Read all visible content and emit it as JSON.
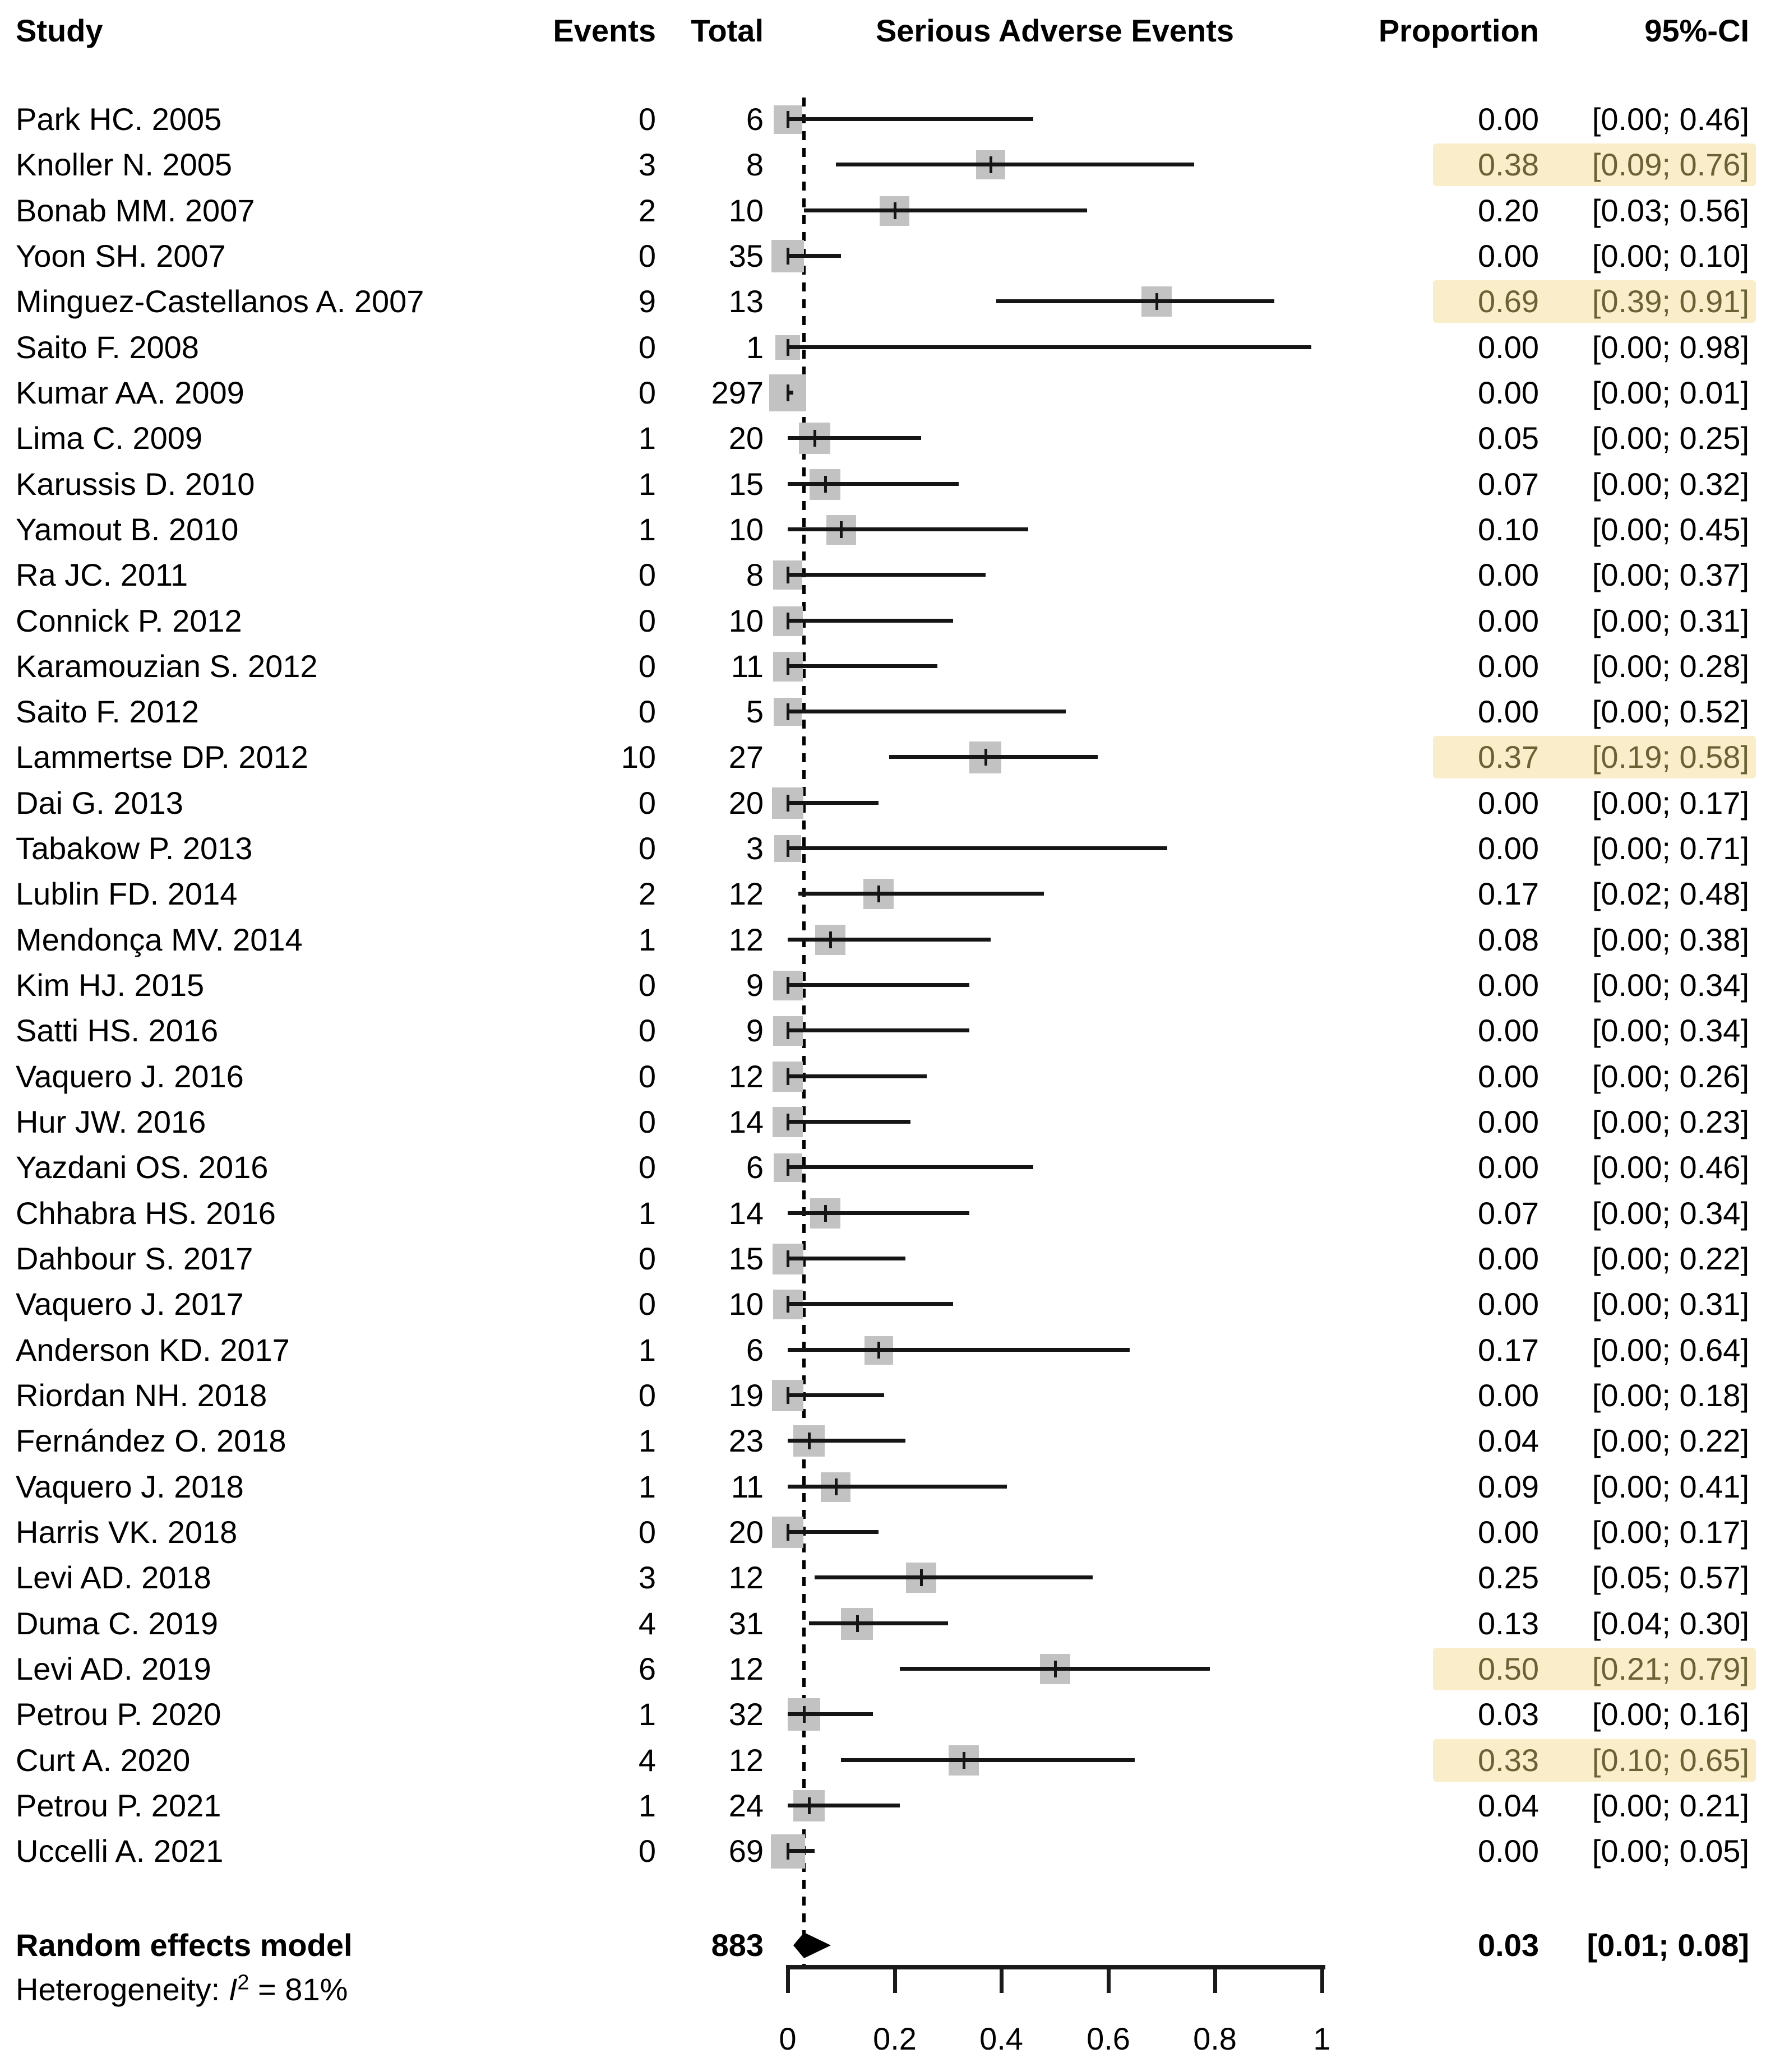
{
  "chart_data": {
    "type": "forest",
    "title": "Serious Adverse Events",
    "columns": {
      "study": "Study",
      "events": "Events",
      "total": "Total",
      "plot": "Serious Adverse Events",
      "proportion": "Proportion",
      "ci": "95%-CI"
    },
    "axis": {
      "min": 0,
      "max": 1,
      "tick_values": [
        0,
        0.2,
        0.4,
        0.6,
        0.8,
        1
      ],
      "ticks": [
        "0",
        "0.2",
        "0.4",
        "0.6",
        "0.8",
        "1"
      ]
    },
    "pooled": {
      "label": "Random effects model",
      "total": "883",
      "proportion": 0.03,
      "ci_lower": 0.01,
      "ci_upper": 0.08,
      "proportion_text": "0.03",
      "ci_text": "[0.01; 0.08]"
    },
    "heterogeneity": {
      "prefix": "Heterogeneity: ",
      "stat": "I",
      "sup": "2",
      "rest": " = 81%"
    },
    "colors": {
      "square": "#c2c2c2",
      "highlight_bg": "#f9edca",
      "highlight_text": "#6a6135"
    },
    "studies": [
      {
        "name": "Park HC. 2005",
        "events": "0",
        "total": "6",
        "n": 6,
        "p": 0.0,
        "lo": 0.0,
        "hi": 0.46,
        "p_text": "0.00",
        "ci_text": "[0.00; 0.46]",
        "highlight": false
      },
      {
        "name": "Knoller N. 2005",
        "events": "3",
        "total": "8",
        "n": 8,
        "p": 0.38,
        "lo": 0.09,
        "hi": 0.76,
        "p_text": "0.38",
        "ci_text": "[0.09; 0.76]",
        "highlight": true
      },
      {
        "name": "Bonab MM. 2007",
        "events": "2",
        "total": "10",
        "n": 10,
        "p": 0.2,
        "lo": 0.03,
        "hi": 0.56,
        "p_text": "0.20",
        "ci_text": "[0.03; 0.56]",
        "highlight": false
      },
      {
        "name": "Yoon SH. 2007",
        "events": "0",
        "total": "35",
        "n": 35,
        "p": 0.0,
        "lo": 0.0,
        "hi": 0.1,
        "p_text": "0.00",
        "ci_text": "[0.00; 0.10]",
        "highlight": false
      },
      {
        "name": "Minguez-Castellanos A. 2007",
        "events": "9",
        "total": "13",
        "n": 13,
        "p": 0.69,
        "lo": 0.39,
        "hi": 0.91,
        "p_text": "0.69",
        "ci_text": "[0.39; 0.91]",
        "highlight": true
      },
      {
        "name": "Saito F. 2008",
        "events": "0",
        "total": "1",
        "n": 1,
        "p": 0.0,
        "lo": 0.0,
        "hi": 0.98,
        "p_text": "0.00",
        "ci_text": "[0.00; 0.98]",
        "highlight": false
      },
      {
        "name": "Kumar AA. 2009",
        "events": "0",
        "total": "297",
        "n": 297,
        "p": 0.0,
        "lo": 0.0,
        "hi": 0.01,
        "p_text": "0.00",
        "ci_text": "[0.00; 0.01]",
        "highlight": false
      },
      {
        "name": "Lima C. 2009",
        "events": "1",
        "total": "20",
        "n": 20,
        "p": 0.05,
        "lo": 0.0,
        "hi": 0.25,
        "p_text": "0.05",
        "ci_text": "[0.00; 0.25]",
        "highlight": false
      },
      {
        "name": "Karussis D. 2010",
        "events": "1",
        "total": "15",
        "n": 15,
        "p": 0.07,
        "lo": 0.0,
        "hi": 0.32,
        "p_text": "0.07",
        "ci_text": "[0.00; 0.32]",
        "highlight": false
      },
      {
        "name": "Yamout B. 2010",
        "events": "1",
        "total": "10",
        "n": 10,
        "p": 0.1,
        "lo": 0.0,
        "hi": 0.45,
        "p_text": "0.10",
        "ci_text": "[0.00; 0.45]",
        "highlight": false
      },
      {
        "name": "Ra JC. 2011",
        "events": "0",
        "total": "8",
        "n": 8,
        "p": 0.0,
        "lo": 0.0,
        "hi": 0.37,
        "p_text": "0.00",
        "ci_text": "[0.00; 0.37]",
        "highlight": false
      },
      {
        "name": "Connick P. 2012",
        "events": "0",
        "total": "10",
        "n": 10,
        "p": 0.0,
        "lo": 0.0,
        "hi": 0.31,
        "p_text": "0.00",
        "ci_text": "[0.00; 0.31]",
        "highlight": false
      },
      {
        "name": "Karamouzian S. 2012",
        "events": "0",
        "total": "11",
        "n": 11,
        "p": 0.0,
        "lo": 0.0,
        "hi": 0.28,
        "p_text": "0.00",
        "ci_text": "[0.00; 0.28]",
        "highlight": false
      },
      {
        "name": "Saito F. 2012",
        "events": "0",
        "total": "5",
        "n": 5,
        "p": 0.0,
        "lo": 0.0,
        "hi": 0.52,
        "p_text": "0.00",
        "ci_text": "[0.00; 0.52]",
        "highlight": false
      },
      {
        "name": "Lammertse DP. 2012",
        "events": "10",
        "total": "27",
        "n": 27,
        "p": 0.37,
        "lo": 0.19,
        "hi": 0.58,
        "p_text": "0.37",
        "ci_text": "[0.19; 0.58]",
        "highlight": true
      },
      {
        "name": "Dai G. 2013",
        "events": "0",
        "total": "20",
        "n": 20,
        "p": 0.0,
        "lo": 0.0,
        "hi": 0.17,
        "p_text": "0.00",
        "ci_text": "[0.00; 0.17]",
        "highlight": false
      },
      {
        "name": "Tabakow P. 2013",
        "events": "0",
        "total": "3",
        "n": 3,
        "p": 0.0,
        "lo": 0.0,
        "hi": 0.71,
        "p_text": "0.00",
        "ci_text": "[0.00; 0.71]",
        "highlight": false
      },
      {
        "name": "Lublin FD. 2014",
        "events": "2",
        "total": "12",
        "n": 12,
        "p": 0.17,
        "lo": 0.02,
        "hi": 0.48,
        "p_text": "0.17",
        "ci_text": "[0.02; 0.48]",
        "highlight": false
      },
      {
        "name": "Mendonça MV. 2014",
        "events": "1",
        "total": "12",
        "n": 12,
        "p": 0.08,
        "lo": 0.0,
        "hi": 0.38,
        "p_text": "0.08",
        "ci_text": "[0.00; 0.38]",
        "highlight": false
      },
      {
        "name": "Kim HJ. 2015",
        "events": "0",
        "total": "9",
        "n": 9,
        "p": 0.0,
        "lo": 0.0,
        "hi": 0.34,
        "p_text": "0.00",
        "ci_text": "[0.00; 0.34]",
        "highlight": false
      },
      {
        "name": "Satti HS. 2016",
        "events": "0",
        "total": "9",
        "n": 9,
        "p": 0.0,
        "lo": 0.0,
        "hi": 0.34,
        "p_text": "0.00",
        "ci_text": "[0.00; 0.34]",
        "highlight": false
      },
      {
        "name": "Vaquero J. 2016",
        "events": "0",
        "total": "12",
        "n": 12,
        "p": 0.0,
        "lo": 0.0,
        "hi": 0.26,
        "p_text": "0.00",
        "ci_text": "[0.00; 0.26]",
        "highlight": false
      },
      {
        "name": "Hur JW. 2016",
        "events": "0",
        "total": "14",
        "n": 14,
        "p": 0.0,
        "lo": 0.0,
        "hi": 0.23,
        "p_text": "0.00",
        "ci_text": "[0.00; 0.23]",
        "highlight": false
      },
      {
        "name": "Yazdani OS. 2016",
        "events": "0",
        "total": "6",
        "n": 6,
        "p": 0.0,
        "lo": 0.0,
        "hi": 0.46,
        "p_text": "0.00",
        "ci_text": "[0.00; 0.46]",
        "highlight": false
      },
      {
        "name": "Chhabra HS. 2016",
        "events": "1",
        "total": "14",
        "n": 14,
        "p": 0.07,
        "lo": 0.0,
        "hi": 0.34,
        "p_text": "0.07",
        "ci_text": "[0.00; 0.34]",
        "highlight": false
      },
      {
        "name": "Dahbour S. 2017",
        "events": "0",
        "total": "15",
        "n": 15,
        "p": 0.0,
        "lo": 0.0,
        "hi": 0.22,
        "p_text": "0.00",
        "ci_text": "[0.00; 0.22]",
        "highlight": false
      },
      {
        "name": "Vaquero J. 2017",
        "events": "0",
        "total": "10",
        "n": 10,
        "p": 0.0,
        "lo": 0.0,
        "hi": 0.31,
        "p_text": "0.00",
        "ci_text": "[0.00; 0.31]",
        "highlight": false
      },
      {
        "name": "Anderson KD. 2017",
        "events": "1",
        "total": "6",
        "n": 6,
        "p": 0.17,
        "lo": 0.0,
        "hi": 0.64,
        "p_text": "0.17",
        "ci_text": "[0.00; 0.64]",
        "highlight": false
      },
      {
        "name": "Riordan NH. 2018",
        "events": "0",
        "total": "19",
        "n": 19,
        "p": 0.0,
        "lo": 0.0,
        "hi": 0.18,
        "p_text": "0.00",
        "ci_text": "[0.00; 0.18]",
        "highlight": false
      },
      {
        "name": "Fernández O. 2018",
        "events": "1",
        "total": "23",
        "n": 23,
        "p": 0.04,
        "lo": 0.0,
        "hi": 0.22,
        "p_text": "0.04",
        "ci_text": "[0.00; 0.22]",
        "highlight": false
      },
      {
        "name": "Vaquero J. 2018",
        "events": "1",
        "total": "11",
        "n": 11,
        "p": 0.09,
        "lo": 0.0,
        "hi": 0.41,
        "p_text": "0.09",
        "ci_text": "[0.00; 0.41]",
        "highlight": false
      },
      {
        "name": "Harris VK. 2018",
        "events": "0",
        "total": "20",
        "n": 20,
        "p": 0.0,
        "lo": 0.0,
        "hi": 0.17,
        "p_text": "0.00",
        "ci_text": "[0.00; 0.17]",
        "highlight": false
      },
      {
        "name": "Levi AD. 2018",
        "events": "3",
        "total": "12",
        "n": 12,
        "p": 0.25,
        "lo": 0.05,
        "hi": 0.57,
        "p_text": "0.25",
        "ci_text": "[0.05; 0.57]",
        "highlight": false
      },
      {
        "name": "Duma C. 2019",
        "events": "4",
        "total": "31",
        "n": 31,
        "p": 0.13,
        "lo": 0.04,
        "hi": 0.3,
        "p_text": "0.13",
        "ci_text": "[0.04; 0.30]",
        "highlight": false
      },
      {
        "name": "Levi AD. 2019",
        "events": "6",
        "total": "12",
        "n": 12,
        "p": 0.5,
        "lo": 0.21,
        "hi": 0.79,
        "p_text": "0.50",
        "ci_text": "[0.21; 0.79]",
        "highlight": true
      },
      {
        "name": "Petrou P. 2020",
        "events": "1",
        "total": "32",
        "n": 32,
        "p": 0.03,
        "lo": 0.0,
        "hi": 0.16,
        "p_text": "0.03",
        "ci_text": "[0.00; 0.16]",
        "highlight": false
      },
      {
        "name": "Curt A. 2020",
        "events": "4",
        "total": "12",
        "n": 12,
        "p": 0.33,
        "lo": 0.1,
        "hi": 0.65,
        "p_text": "0.33",
        "ci_text": "[0.10; 0.65]",
        "highlight": true
      },
      {
        "name": "Petrou P. 2021",
        "events": "1",
        "total": "24",
        "n": 24,
        "p": 0.04,
        "lo": 0.0,
        "hi": 0.21,
        "p_text": "0.04",
        "ci_text": "[0.00; 0.21]",
        "highlight": false
      },
      {
        "name": "Uccelli A. 2021",
        "events": "0",
        "total": "69",
        "n": 69,
        "p": 0.0,
        "lo": 0.0,
        "hi": 0.05,
        "p_text": "0.00",
        "ci_text": "[0.00; 0.05]",
        "highlight": false
      }
    ]
  }
}
